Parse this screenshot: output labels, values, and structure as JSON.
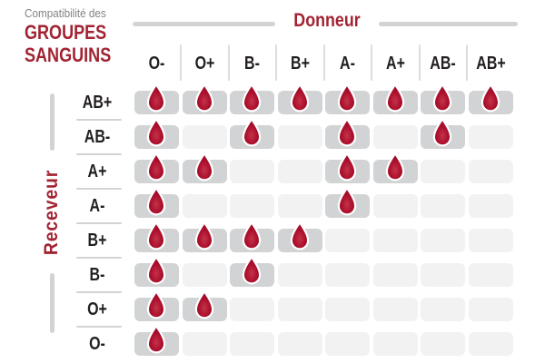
{
  "title": {
    "eyebrow": "Compatibilité des",
    "line1": "GROUPES",
    "line2": "SANGUINS"
  },
  "axes": {
    "donor": "Donneur",
    "receiver": "Receveur"
  },
  "icons": {
    "marker": "blood-drop-icon"
  },
  "colors": {
    "accent_red": "#A22433",
    "drop_red": "#AB0F2C",
    "drop_highlight": "#C4334A",
    "drop_dark_edge": "#930B25",
    "text_dark": "#231F20",
    "text_gray": "#808285",
    "line_gray": "#D1D3D4",
    "cell_filled": "#D1D3D4",
    "cell_empty": "#F2F2F3"
  },
  "chart_data": {
    "type": "heatmap",
    "title": "Compatibilité des groupes sanguins",
    "x_label": "Donneur",
    "y_label": "Receveur",
    "marker": "blood-drop",
    "donors": [
      "O-",
      "O+",
      "B-",
      "B+",
      "A-",
      "A+",
      "AB-",
      "AB+"
    ],
    "receivers": [
      "AB+",
      "AB-",
      "A+",
      "A-",
      "B+",
      "B-",
      "O+",
      "O-"
    ],
    "matrix": [
      [
        1,
        1,
        1,
        1,
        1,
        1,
        1,
        1
      ],
      [
        1,
        0,
        1,
        0,
        1,
        0,
        1,
        0
      ],
      [
        1,
        1,
        0,
        0,
        1,
        1,
        0,
        0
      ],
      [
        1,
        0,
        0,
        0,
        1,
        0,
        0,
        0
      ],
      [
        1,
        1,
        1,
        1,
        0,
        0,
        0,
        0
      ],
      [
        1,
        0,
        1,
        0,
        0,
        0,
        0,
        0
      ],
      [
        1,
        1,
        0,
        0,
        0,
        0,
        0,
        0
      ],
      [
        1,
        0,
        0,
        0,
        0,
        0,
        0,
        0
      ]
    ],
    "compatible": {
      "AB+": [
        "O-",
        "O+",
        "B-",
        "B+",
        "A-",
        "A+",
        "AB-",
        "AB+"
      ],
      "AB-": [
        "O-",
        "B-",
        "A-",
        "AB-"
      ],
      "A+": [
        "O-",
        "O+",
        "A-",
        "A+"
      ],
      "A-": [
        "O-",
        "A-"
      ],
      "B+": [
        "O-",
        "O+",
        "B-",
        "B+"
      ],
      "B-": [
        "O-",
        "B-"
      ],
      "O+": [
        "O-",
        "O+"
      ],
      "O-": [
        "O-"
      ]
    }
  }
}
